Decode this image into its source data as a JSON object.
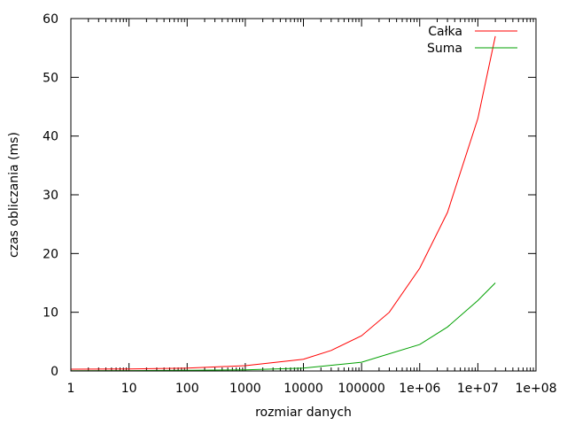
{
  "chart_data": {
    "type": "line",
    "title": "",
    "xlabel": "rozmiar danych",
    "ylabel": "czas obliczania (ms)",
    "xscale": "log",
    "xlim": [
      1,
      100000000
    ],
    "ylim": [
      0,
      60
    ],
    "grid": false,
    "legend_position": "top-right",
    "x_ticks": [
      1,
      10,
      100,
      1000,
      10000,
      100000,
      1000000,
      10000000,
      100000000
    ],
    "x_tick_labels": [
      "1",
      "10",
      "100",
      "1000",
      "10000",
      "100000",
      "1e+06",
      "1e+07",
      "1e+08"
    ],
    "y_ticks": [
      0,
      10,
      20,
      30,
      40,
      50,
      60
    ],
    "y_tick_labels": [
      "0",
      "10",
      "20",
      "30",
      "40",
      "50",
      "60"
    ],
    "series": [
      {
        "name": "Całka",
        "color": "#ff0000",
        "points": [
          {
            "x": 1,
            "y": 0.3
          },
          {
            "x": 10,
            "y": 0.35
          },
          {
            "x": 100,
            "y": 0.5
          },
          {
            "x": 1000,
            "y": 0.9
          },
          {
            "x": 10000,
            "y": 2.0
          },
          {
            "x": 30000,
            "y": 3.5
          },
          {
            "x": 100000,
            "y": 6.0
          },
          {
            "x": 300000,
            "y": 10.0
          },
          {
            "x": 1000000,
            "y": 17.5
          },
          {
            "x": 3000000,
            "y": 27.0
          },
          {
            "x": 10000000,
            "y": 43.0
          },
          {
            "x": 20000000,
            "y": 57.0
          }
        ]
      },
      {
        "name": "Suma",
        "color": "#00a000",
        "points": [
          {
            "x": 1,
            "y": 0.05
          },
          {
            "x": 10,
            "y": 0.06
          },
          {
            "x": 100,
            "y": 0.1
          },
          {
            "x": 1000,
            "y": 0.2
          },
          {
            "x": 10000,
            "y": 0.5
          },
          {
            "x": 100000,
            "y": 1.5
          },
          {
            "x": 1000000,
            "y": 4.5
          },
          {
            "x": 3000000,
            "y": 7.5
          },
          {
            "x": 10000000,
            "y": 12.0
          },
          {
            "x": 20000000,
            "y": 15.0
          }
        ]
      }
    ]
  }
}
